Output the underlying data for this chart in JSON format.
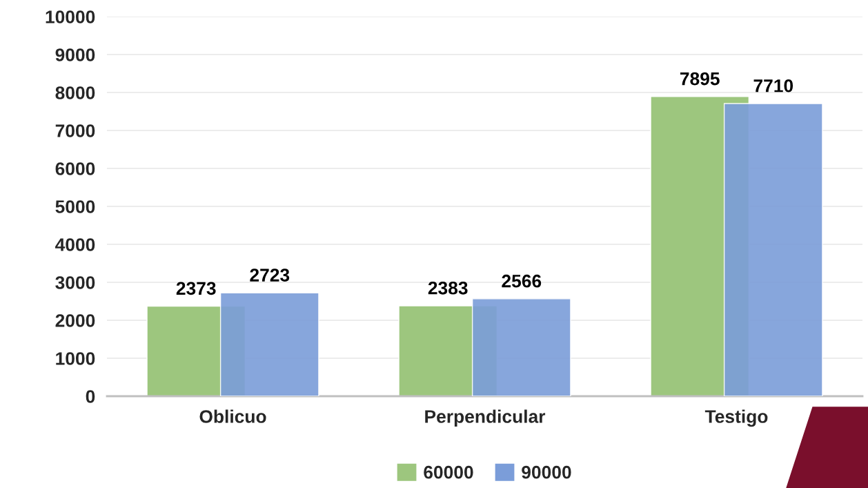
{
  "chart_data": {
    "type": "bar",
    "categories": [
      "Oblicuo",
      "Perpendicular",
      "Testigo"
    ],
    "series": [
      {
        "name": "60000",
        "color": "#9dc67e",
        "values": [
          2373,
          2383,
          7895
        ]
      },
      {
        "name": "90000",
        "color": "#7b9dd9",
        "values": [
          2723,
          2566,
          7710
        ]
      }
    ],
    "ylim": [
      0,
      10000
    ],
    "yticks": [
      0,
      1000,
      2000,
      3000,
      4000,
      5000,
      6000,
      7000,
      8000,
      9000,
      10000
    ],
    "grid": "y",
    "legend": "bottom",
    "data_labels": true
  }
}
